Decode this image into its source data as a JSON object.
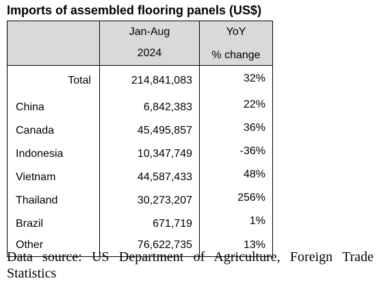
{
  "title": "Imports of assembled flooring panels (US$)",
  "chart_data": {
    "type": "table",
    "columns": [
      {
        "line1": "",
        "line2": ""
      },
      {
        "line1": "Jan-Aug",
        "line2": "2024"
      },
      {
        "line1": "YoY",
        "line2": "% change"
      }
    ],
    "rows": [
      {
        "name": "Total",
        "value": "214,841,083",
        "yoy": "32%"
      },
      {
        "name": "China",
        "value": "6,842,383",
        "yoy": "22%"
      },
      {
        "name": "Canada",
        "value": "45,495,857",
        "yoy": "36%"
      },
      {
        "name": "Indonesia",
        "value": "10,347,749",
        "yoy": "-36%"
      },
      {
        "name": "Vietnam",
        "value": "44,587,433",
        "yoy": "48%"
      },
      {
        "name": "Thailand",
        "value": "30,273,207",
        "yoy": "256%"
      },
      {
        "name": "Brazil",
        "value": "671,719",
        "yoy": "1%"
      },
      {
        "name": "Other",
        "value": "76,622,735",
        "yoy": "13%"
      }
    ]
  },
  "source": "Data source: US Department of Agriculture, Foreign Trade Statistics"
}
